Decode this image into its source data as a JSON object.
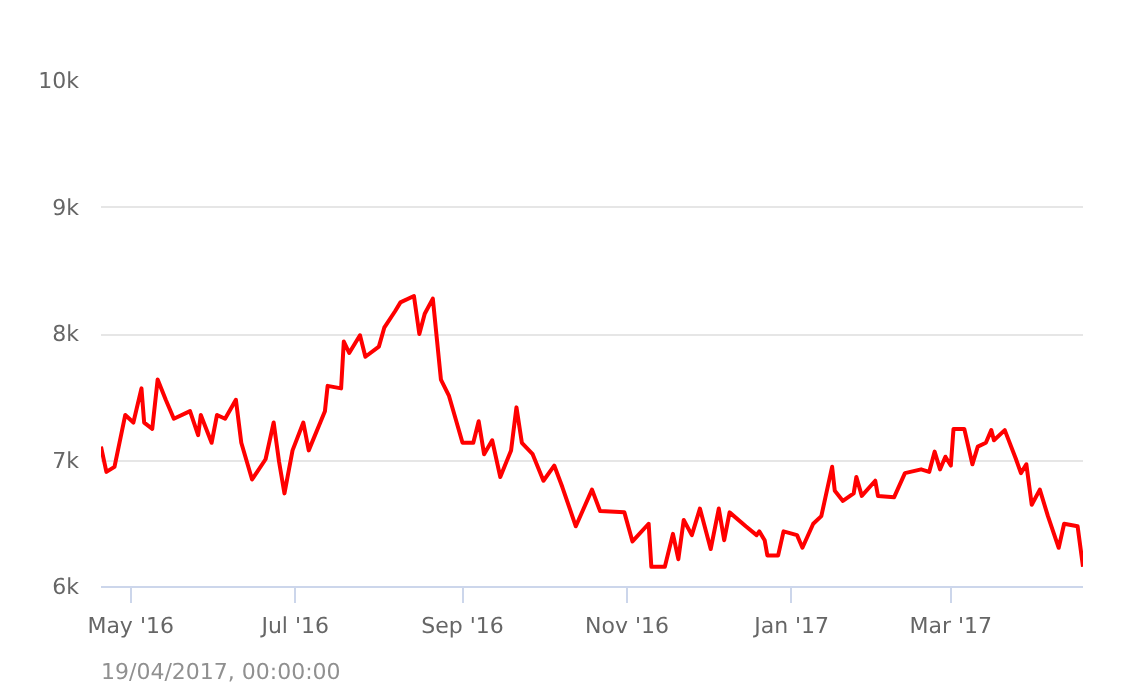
{
  "chart_data": {
    "type": "line",
    "x": [
      "2016-04-20",
      "2016-04-22",
      "2016-04-25",
      "2016-04-29",
      "2016-05-02",
      "2016-05-05",
      "2016-05-06",
      "2016-05-09",
      "2016-05-11",
      "2016-05-14",
      "2016-05-17",
      "2016-05-23",
      "2016-05-26",
      "2016-05-27",
      "2016-05-31",
      "2016-06-02",
      "2016-06-05",
      "2016-06-09",
      "2016-06-11",
      "2016-06-15",
      "2016-06-20",
      "2016-06-23",
      "2016-06-25",
      "2016-06-27",
      "2016-06-30",
      "2016-07-04",
      "2016-07-06",
      "2016-07-12",
      "2016-07-13",
      "2016-07-18",
      "2016-07-19",
      "2016-07-21",
      "2016-07-25",
      "2016-07-27",
      "2016-08-01",
      "2016-08-03",
      "2016-08-07",
      "2016-08-09",
      "2016-08-14",
      "2016-08-16",
      "2016-08-18",
      "2016-08-21",
      "2016-08-24",
      "2016-08-27",
      "2016-09-01",
      "2016-09-05",
      "2016-09-07",
      "2016-09-09",
      "2016-09-12",
      "2016-09-15",
      "2016-09-19",
      "2016-09-21",
      "2016-09-23",
      "2016-09-27",
      "2016-10-01",
      "2016-10-05",
      "2016-10-08",
      "2016-10-13",
      "2016-10-19",
      "2016-10-22",
      "2016-10-31",
      "2016-11-03",
      "2016-11-09",
      "2016-11-10",
      "2016-11-15",
      "2016-11-18",
      "2016-11-20",
      "2016-11-22",
      "2016-11-25",
      "2016-11-28",
      "2016-12-02",
      "2016-12-05",
      "2016-12-07",
      "2016-12-09",
      "2016-12-15",
      "2016-12-19",
      "2016-12-20",
      "2016-12-22",
      "2016-12-23",
      "2016-12-27",
      "2016-12-29",
      "2017-01-03",
      "2017-01-05",
      "2017-01-09",
      "2017-01-12",
      "2017-01-16",
      "2017-01-17",
      "2017-01-20",
      "2017-01-24",
      "2017-01-25",
      "2017-01-27",
      "2017-02-01",
      "2017-02-02",
      "2017-02-08",
      "2017-02-12",
      "2017-02-18",
      "2017-02-21",
      "2017-02-23",
      "2017-02-25",
      "2017-02-27",
      "2017-03-01",
      "2017-03-02",
      "2017-03-06",
      "2017-03-09",
      "2017-03-11",
      "2017-03-14",
      "2017-03-16",
      "2017-03-17",
      "2017-03-21",
      "2017-03-25",
      "2017-03-27",
      "2017-03-29",
      "2017-03-31",
      "2017-04-03",
      "2017-04-06",
      "2017-04-10",
      "2017-04-12",
      "2017-04-17",
      "2017-04-19"
    ],
    "series": [
      {
        "color": "#ff0000",
        "values": [
          7110,
          6910,
          6950,
          7360,
          7300,
          7570,
          7300,
          7250,
          7640,
          7480,
          7330,
          7390,
          7200,
          7360,
          7140,
          7360,
          7330,
          7480,
          7140,
          6850,
          7010,
          7300,
          6990,
          6740,
          7080,
          7300,
          7080,
          7390,
          7590,
          7570,
          7940,
          7850,
          7990,
          7820,
          7900,
          8050,
          8180,
          8250,
          8300,
          8000,
          8160,
          8280,
          7640,
          7510,
          7140,
          7140,
          7310,
          7050,
          7160,
          6870,
          7080,
          7420,
          7140,
          7050,
          6840,
          6960,
          6790,
          6480,
          6770,
          6600,
          6590,
          6360,
          6500,
          6160,
          6160,
          6420,
          6220,
          6530,
          6410,
          6620,
          6300,
          6620,
          6370,
          6590,
          6480,
          6410,
          6440,
          6370,
          6250,
          6250,
          6440,
          6410,
          6310,
          6500,
          6560,
          6950,
          6760,
          6680,
          6740,
          6870,
          6720,
          6840,
          6720,
          6710,
          6900,
          6930,
          6910,
          7070,
          6930,
          7030,
          6960,
          7250,
          7250,
          6970,
          7110,
          7140,
          7240,
          7160,
          7240,
          7020,
          6900,
          6970,
          6650,
          6770,
          6560,
          6310,
          6500,
          6480,
          6160
        ]
      }
    ],
    "xlim": [
      "2016-04-20",
      "2017-04-19"
    ],
    "xticks": [
      {
        "value": "2016-05-01",
        "label": "May '16"
      },
      {
        "value": "2016-07-01",
        "label": "Jul '16"
      },
      {
        "value": "2016-09-01",
        "label": "Sep '16"
      },
      {
        "value": "2016-11-01",
        "label": "Nov '16"
      },
      {
        "value": "2017-01-01",
        "label": "Jan '17"
      },
      {
        "value": "2017-03-01",
        "label": "Mar '17"
      }
    ],
    "ylim": [
      6000,
      10000
    ],
    "yticks": [
      {
        "value": 6000,
        "label": "6k"
      },
      {
        "value": 7000,
        "label": "7k"
      },
      {
        "value": 8000,
        "label": "8k"
      },
      {
        "value": 9000,
        "label": "9k"
      },
      {
        "value": 10000,
        "label": "10k"
      }
    ],
    "grid": "y",
    "annotations": [
      "19/04/2017, 00:00:00"
    ]
  }
}
